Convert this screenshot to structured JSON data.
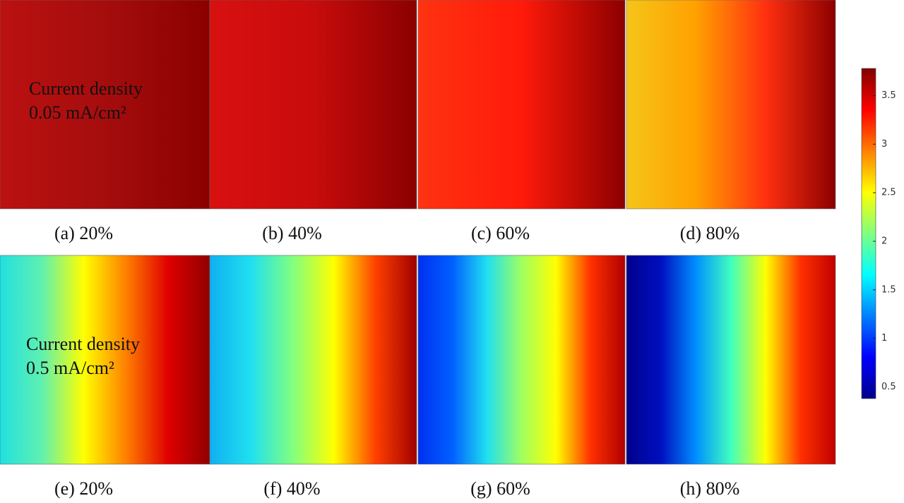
{
  "panels": [
    {
      "label": "(a) 20%",
      "annotation": [
        "Current density",
        "0.05 mA/cm²"
      ],
      "colors": [
        "#bb1111",
        "#a50d0d",
        "#8b0000"
      ]
    },
    {
      "label": "(b) 40%",
      "colors": [
        "#d81010",
        "#c80c0c",
        "#8b0000"
      ]
    },
    {
      "label": "(c) 60%",
      "colors": [
        "#ff3311",
        "#ff1a0a",
        "#8b0000"
      ]
    },
    {
      "label": "(d) 80%",
      "colors": [
        "#f5c519",
        "#ffa000",
        "#ff3010",
        "#8b0000"
      ]
    },
    {
      "label": "(e) 20%",
      "annotation": [
        "Current density",
        "0.5 mA/cm²"
      ],
      "colors": [
        "#20e0e0",
        "#60f0b0",
        "#ffff00",
        "#ff8000",
        "#e00000",
        "#900000"
      ]
    },
    {
      "label": "(f) 40%",
      "colors": [
        "#10b0f0",
        "#20e0f0",
        "#80ff80",
        "#ffff00",
        "#ff4000",
        "#a00000"
      ]
    },
    {
      "label": "(g) 60%",
      "colors": [
        "#0030f0",
        "#0060ff",
        "#20e0f0",
        "#a0ff60",
        "#ffff00",
        "#ff3000",
        "#b00000"
      ]
    },
    {
      "label": "(h) 80%",
      "colors": [
        "#00008b",
        "#0010c0",
        "#0090ff",
        "#40ffc0",
        "#ffff00",
        "#ff3000",
        "#c00000"
      ]
    }
  ],
  "colorbar": {
    "lim": [
      0.38,
      3.78
    ],
    "ticks": [
      0.5,
      1,
      1.5,
      2,
      2.5,
      3,
      3.5
    ],
    "colors": [
      "#00008b",
      "#0000ff",
      "#0080ff",
      "#00ffff",
      "#80ff80",
      "#ffff00",
      "#ff8000",
      "#ff0000",
      "#800000"
    ]
  }
}
